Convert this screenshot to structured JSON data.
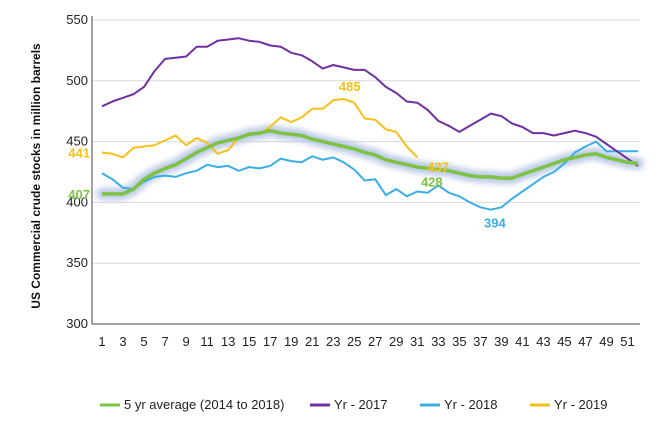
{
  "chart_data": {
    "type": "line",
    "title": "",
    "xlabel": "",
    "ylabel": "US Commercial crude stocks in million barrels",
    "xlim": [
      1,
      52
    ],
    "ylim": [
      300,
      550
    ],
    "xticks": [
      1,
      3,
      5,
      7,
      9,
      11,
      13,
      15,
      17,
      19,
      21,
      23,
      25,
      27,
      29,
      31,
      33,
      35,
      37,
      39,
      41,
      43,
      45,
      47,
      49,
      51
    ],
    "yticks": [
      300,
      350,
      400,
      450,
      500,
      550
    ],
    "grid": "horizontal",
    "legend_position": "bottom",
    "colors": {
      "avg": "#7dc243",
      "avg_glow": "#b4c4e4",
      "y2017": "#7030a0",
      "y2018": "#3baee5",
      "y2019": "#f5c11a",
      "axis": "#444444",
      "grid": "#d9d9d9"
    },
    "series": [
      {
        "key": "avg",
        "name": "5 yr average (2014 to 2018)",
        "x": [
          1,
          2,
          3,
          4,
          5,
          6,
          7,
          8,
          9,
          10,
          11,
          12,
          13,
          14,
          15,
          16,
          17,
          18,
          19,
          20,
          21,
          22,
          23,
          24,
          25,
          26,
          27,
          28,
          29,
          30,
          31,
          32,
          33,
          34,
          35,
          36,
          37,
          38,
          39,
          40,
          41,
          42,
          43,
          44,
          45,
          46,
          47,
          48,
          49,
          50,
          51,
          52
        ],
        "values": [
          407,
          407,
          407,
          411,
          419,
          424,
          428,
          431,
          436,
          441,
          445,
          449,
          451,
          453,
          456,
          457,
          459,
          457,
          456,
          455,
          452,
          450,
          448,
          446,
          444,
          441,
          439,
          435,
          433,
          431,
          429,
          428,
          427,
          426,
          424,
          422,
          421,
          421,
          420,
          420,
          423,
          426,
          429,
          432,
          435,
          437,
          439,
          440,
          437,
          435,
          433,
          432
        ]
      },
      {
        "key": "y2017",
        "name": "Yr - 2017",
        "x": [
          1,
          2,
          3,
          4,
          5,
          6,
          7,
          8,
          9,
          10,
          11,
          12,
          13,
          14,
          15,
          16,
          17,
          18,
          19,
          20,
          21,
          22,
          23,
          24,
          25,
          26,
          27,
          28,
          29,
          30,
          31,
          32,
          33,
          34,
          35,
          36,
          37,
          38,
          39,
          40,
          41,
          42,
          43,
          44,
          45,
          46,
          47,
          48,
          49,
          50,
          51,
          52
        ],
        "values": [
          479,
          483,
          486,
          489,
          495,
          508,
          518,
          519,
          520,
          528,
          528,
          533,
          534,
          535,
          533,
          532,
          529,
          528,
          523,
          521,
          516,
          510,
          513,
          511,
          509,
          509,
          503,
          495,
          490,
          483,
          482,
          476,
          467,
          463,
          458,
          463,
          468,
          473,
          471,
          465,
          462,
          457,
          457,
          455,
          457,
          459,
          457,
          454,
          448,
          442,
          436,
          430
        ]
      },
      {
        "key": "y2018",
        "name": "Yr - 2018",
        "x": [
          1,
          2,
          3,
          4,
          5,
          6,
          7,
          8,
          9,
          10,
          11,
          12,
          13,
          14,
          15,
          16,
          17,
          18,
          19,
          20,
          21,
          22,
          23,
          24,
          25,
          26,
          27,
          28,
          29,
          30,
          31,
          32,
          33,
          34,
          35,
          36,
          37,
          38,
          39,
          40,
          41,
          42,
          43,
          44,
          45,
          46,
          47,
          48,
          49,
          50,
          51,
          52
        ],
        "values": [
          424,
          419,
          412,
          411,
          417,
          421,
          422,
          421,
          424,
          426,
          431,
          429,
          430,
          426,
          429,
          428,
          430,
          436,
          434,
          433,
          438,
          435,
          437,
          433,
          427,
          418,
          419,
          406,
          411,
          405,
          409,
          408,
          414,
          408,
          405,
          400,
          396,
          394,
          396,
          403,
          409,
          415,
          421,
          425,
          432,
          441,
          446,
          450,
          442,
          442,
          442,
          442
        ]
      },
      {
        "key": "y2019",
        "name": "Yr - 2019",
        "x": [
          1,
          2,
          3,
          4,
          5,
          6,
          7,
          8,
          9,
          10,
          11,
          12,
          13,
          14,
          15,
          16,
          17,
          18,
          19,
          20,
          21,
          22,
          23,
          24,
          25,
          26,
          27,
          28,
          29,
          30,
          31
        ],
        "values": [
          441,
          440,
          437,
          445,
          446,
          447,
          451,
          455,
          447,
          453,
          449,
          440,
          443,
          453,
          457,
          456,
          462,
          470,
          466,
          470,
          477,
          477,
          484,
          485,
          482,
          469,
          468,
          460,
          458,
          446,
          437
        ]
      }
    ],
    "annotations": [
      {
        "text": "441",
        "x": 1,
        "y": 441,
        "series": "y2019",
        "side": "left"
      },
      {
        "text": "407",
        "x": 1,
        "y": 407,
        "series": "avg",
        "side": "left"
      },
      {
        "text": "485",
        "x": 24,
        "y": 485,
        "series": "y2019",
        "side": "above"
      },
      {
        "text": "437",
        "x": 31,
        "y": 437,
        "series": "y2019",
        "side": "right"
      },
      {
        "text": "428",
        "x": 32,
        "y": 428,
        "series": "avg",
        "side": "below"
      },
      {
        "text": "394",
        "x": 38,
        "y": 394,
        "series": "y2018",
        "side": "below"
      }
    ]
  }
}
